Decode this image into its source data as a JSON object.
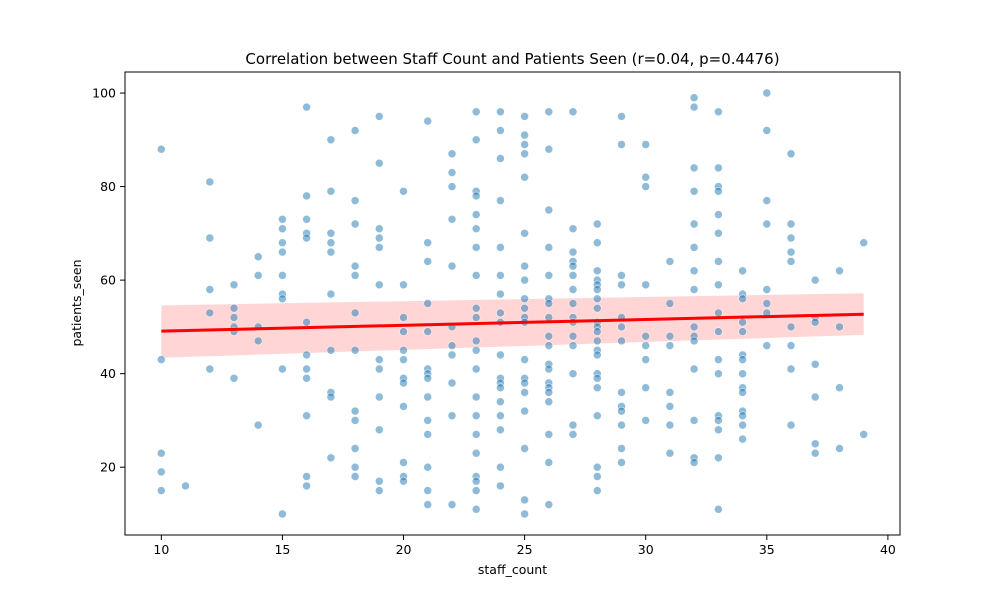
{
  "chart_data": {
    "type": "scatter",
    "title": "Correlation between Staff Count and Patients Seen (r=0.04, p=0.4476)",
    "xlabel": "staff_count",
    "ylabel": "patients_seen",
    "xlim": [
      8.5,
      40.5
    ],
    "ylim": [
      5.5,
      104.5
    ],
    "xticks": [
      10,
      15,
      20,
      25,
      30,
      35,
      40
    ],
    "yticks": [
      20,
      40,
      60,
      80,
      100
    ],
    "grid": false,
    "colors": {
      "points": "#1f77b4",
      "fit_line": "#ff0000",
      "confidence_band": "#ffb3b3"
    },
    "regression": {
      "x": [
        10,
        39
      ],
      "y": [
        49.1,
        52.7
      ],
      "ci_upper": [
        54.6,
        57.2
      ],
      "ci_lower": [
        43.4,
        48.3
      ]
    },
    "points": [
      [
        10,
        88
      ],
      [
        10,
        43
      ],
      [
        10,
        23
      ],
      [
        10,
        19
      ],
      [
        10,
        15
      ],
      [
        11,
        16
      ],
      [
        12,
        81
      ],
      [
        12,
        69
      ],
      [
        12,
        58
      ],
      [
        12,
        53
      ],
      [
        12,
        41
      ],
      [
        13,
        59
      ],
      [
        13,
        54
      ],
      [
        13,
        52
      ],
      [
        13,
        50
      ],
      [
        13,
        49
      ],
      [
        13,
        39
      ],
      [
        14,
        65
      ],
      [
        14,
        61
      ],
      [
        14,
        50
      ],
      [
        14,
        47
      ],
      [
        14,
        29
      ],
      [
        15,
        73
      ],
      [
        15,
        71
      ],
      [
        15,
        68
      ],
      [
        15,
        66
      ],
      [
        15,
        61
      ],
      [
        15,
        57
      ],
      [
        15,
        56
      ],
      [
        15,
        41
      ],
      [
        15,
        10
      ],
      [
        16,
        97
      ],
      [
        16,
        78
      ],
      [
        16,
        73
      ],
      [
        16,
        70
      ],
      [
        16,
        69
      ],
      [
        16,
        51
      ],
      [
        16,
        44
      ],
      [
        16,
        41
      ],
      [
        16,
        39
      ],
      [
        16,
        31
      ],
      [
        16,
        18
      ],
      [
        16,
        16
      ],
      [
        17,
        90
      ],
      [
        17,
        79
      ],
      [
        17,
        70
      ],
      [
        17,
        68
      ],
      [
        17,
        66
      ],
      [
        17,
        57
      ],
      [
        17,
        45
      ],
      [
        17,
        36
      ],
      [
        17,
        35
      ],
      [
        17,
        22
      ],
      [
        18,
        92
      ],
      [
        18,
        77
      ],
      [
        18,
        72
      ],
      [
        18,
        63
      ],
      [
        18,
        61
      ],
      [
        18,
        53
      ],
      [
        18,
        45
      ],
      [
        18,
        32
      ],
      [
        18,
        30
      ],
      [
        18,
        24
      ],
      [
        18,
        20
      ],
      [
        18,
        18
      ],
      [
        19,
        95
      ],
      [
        19,
        85
      ],
      [
        19,
        71
      ],
      [
        19,
        69
      ],
      [
        19,
        67
      ],
      [
        19,
        59
      ],
      [
        19,
        43
      ],
      [
        19,
        41
      ],
      [
        19,
        35
      ],
      [
        19,
        28
      ],
      [
        19,
        17
      ],
      [
        19,
        15
      ],
      [
        20,
        79
      ],
      [
        20,
        59
      ],
      [
        20,
        52
      ],
      [
        20,
        49
      ],
      [
        20,
        45
      ],
      [
        20,
        43
      ],
      [
        20,
        39
      ],
      [
        20,
        38
      ],
      [
        20,
        33
      ],
      [
        20,
        21
      ],
      [
        20,
        18
      ],
      [
        20,
        17
      ],
      [
        21,
        94
      ],
      [
        21,
        68
      ],
      [
        21,
        64
      ],
      [
        21,
        55
      ],
      [
        21,
        49
      ],
      [
        21,
        41
      ],
      [
        21,
        40
      ],
      [
        21,
        39
      ],
      [
        21,
        35
      ],
      [
        21,
        30
      ],
      [
        21,
        27
      ],
      [
        21,
        20
      ],
      [
        21,
        15
      ],
      [
        21,
        12
      ],
      [
        22,
        87
      ],
      [
        22,
        83
      ],
      [
        22,
        80
      ],
      [
        22,
        73
      ],
      [
        22,
        63
      ],
      [
        22,
        50
      ],
      [
        22,
        46
      ],
      [
        22,
        44
      ],
      [
        22,
        38
      ],
      [
        22,
        31
      ],
      [
        22,
        12
      ],
      [
        23,
        96
      ],
      [
        23,
        90
      ],
      [
        23,
        79
      ],
      [
        23,
        78
      ],
      [
        23,
        74
      ],
      [
        23,
        71
      ],
      [
        23,
        67
      ],
      [
        23,
        61
      ],
      [
        23,
        54
      ],
      [
        23,
        52
      ],
      [
        23,
        47
      ],
      [
        23,
        45
      ],
      [
        23,
        41
      ],
      [
        23,
        35
      ],
      [
        23,
        31
      ],
      [
        23,
        27
      ],
      [
        23,
        23
      ],
      [
        23,
        18
      ],
      [
        23,
        17
      ],
      [
        23,
        15
      ],
      [
        23,
        11
      ],
      [
        24,
        96
      ],
      [
        24,
        92
      ],
      [
        24,
        86
      ],
      [
        24,
        77
      ],
      [
        24,
        67
      ],
      [
        24,
        61
      ],
      [
        24,
        57
      ],
      [
        24,
        53
      ],
      [
        24,
        51
      ],
      [
        24,
        44
      ],
      [
        24,
        39
      ],
      [
        24,
        38
      ],
      [
        24,
        37
      ],
      [
        24,
        34
      ],
      [
        24,
        31
      ],
      [
        24,
        28
      ],
      [
        24,
        20
      ],
      [
        24,
        16
      ],
      [
        25,
        95
      ],
      [
        25,
        91
      ],
      [
        25,
        89
      ],
      [
        25,
        87
      ],
      [
        25,
        82
      ],
      [
        25,
        70
      ],
      [
        25,
        63
      ],
      [
        25,
        60
      ],
      [
        25,
        56
      ],
      [
        25,
        54
      ],
      [
        25,
        52
      ],
      [
        25,
        51
      ],
      [
        25,
        43
      ],
      [
        25,
        39
      ],
      [
        25,
        38
      ],
      [
        25,
        36
      ],
      [
        25,
        32
      ],
      [
        25,
        24
      ],
      [
        25,
        13
      ],
      [
        25,
        10
      ],
      [
        26,
        96
      ],
      [
        26,
        88
      ],
      [
        26,
        75
      ],
      [
        26,
        67
      ],
      [
        26,
        61
      ],
      [
        26,
        56
      ],
      [
        26,
        55
      ],
      [
        26,
        52
      ],
      [
        26,
        48
      ],
      [
        26,
        46
      ],
      [
        26,
        42
      ],
      [
        26,
        41
      ],
      [
        26,
        38
      ],
      [
        26,
        37
      ],
      [
        26,
        36
      ],
      [
        26,
        34
      ],
      [
        26,
        27
      ],
      [
        26,
        21
      ],
      [
        26,
        12
      ],
      [
        27,
        96
      ],
      [
        27,
        71
      ],
      [
        27,
        66
      ],
      [
        27,
        64
      ],
      [
        27,
        63
      ],
      [
        27,
        61
      ],
      [
        27,
        58
      ],
      [
        27,
        55
      ],
      [
        27,
        52
      ],
      [
        27,
        51
      ],
      [
        27,
        48
      ],
      [
        27,
        46
      ],
      [
        27,
        40
      ],
      [
        27,
        29
      ],
      [
        27,
        27
      ],
      [
        28,
        72
      ],
      [
        28,
        68
      ],
      [
        28,
        62
      ],
      [
        28,
        60
      ],
      [
        28,
        59
      ],
      [
        28,
        58
      ],
      [
        28,
        56
      ],
      [
        28,
        54
      ],
      [
        28,
        51
      ],
      [
        28,
        50
      ],
      [
        28,
        49
      ],
      [
        28,
        47
      ],
      [
        28,
        45
      ],
      [
        28,
        44
      ],
      [
        28,
        40
      ],
      [
        28,
        39
      ],
      [
        28,
        37
      ],
      [
        28,
        31
      ],
      [
        28,
        20
      ],
      [
        28,
        18
      ],
      [
        28,
        15
      ],
      [
        29,
        95
      ],
      [
        29,
        89
      ],
      [
        29,
        61
      ],
      [
        29,
        59
      ],
      [
        29,
        52
      ],
      [
        29,
        50
      ],
      [
        29,
        47
      ],
      [
        29,
        36
      ],
      [
        29,
        33
      ],
      [
        29,
        32
      ],
      [
        29,
        29
      ],
      [
        29,
        24
      ],
      [
        29,
        21
      ],
      [
        30,
        89
      ],
      [
        30,
        82
      ],
      [
        30,
        80
      ],
      [
        30,
        59
      ],
      [
        30,
        48
      ],
      [
        30,
        46
      ],
      [
        30,
        43
      ],
      [
        30,
        37
      ],
      [
        30,
        30
      ],
      [
        31,
        64
      ],
      [
        31,
        55
      ],
      [
        31,
        48
      ],
      [
        31,
        46
      ],
      [
        31,
        36
      ],
      [
        31,
        33
      ],
      [
        31,
        29
      ],
      [
        31,
        23
      ],
      [
        32,
        99
      ],
      [
        32,
        97
      ],
      [
        32,
        84
      ],
      [
        32,
        79
      ],
      [
        32,
        72
      ],
      [
        32,
        67
      ],
      [
        32,
        62
      ],
      [
        32,
        58
      ],
      [
        32,
        50
      ],
      [
        32,
        48
      ],
      [
        32,
        47
      ],
      [
        32,
        41
      ],
      [
        32,
        30
      ],
      [
        32,
        22
      ],
      [
        32,
        21
      ],
      [
        33,
        96
      ],
      [
        33,
        84
      ],
      [
        33,
        80
      ],
      [
        33,
        79
      ],
      [
        33,
        74
      ],
      [
        33,
        70
      ],
      [
        33,
        64
      ],
      [
        33,
        59
      ],
      [
        33,
        53
      ],
      [
        33,
        49
      ],
      [
        33,
        43
      ],
      [
        33,
        40
      ],
      [
        33,
        31
      ],
      [
        33,
        30
      ],
      [
        33,
        28
      ],
      [
        33,
        22
      ],
      [
        33,
        11
      ],
      [
        34,
        62
      ],
      [
        34,
        57
      ],
      [
        34,
        56
      ],
      [
        34,
        51
      ],
      [
        34,
        49
      ],
      [
        34,
        44
      ],
      [
        34,
        43
      ],
      [
        34,
        40
      ],
      [
        34,
        37
      ],
      [
        34,
        36
      ],
      [
        34,
        32
      ],
      [
        34,
        31
      ],
      [
        34,
        29
      ],
      [
        34,
        26
      ],
      [
        35,
        100
      ],
      [
        35,
        92
      ],
      [
        35,
        77
      ],
      [
        35,
        72
      ],
      [
        35,
        58
      ],
      [
        35,
        55
      ],
      [
        35,
        53
      ],
      [
        35,
        46
      ],
      [
        36,
        87
      ],
      [
        36,
        72
      ],
      [
        36,
        69
      ],
      [
        36,
        66
      ],
      [
        36,
        64
      ],
      [
        36,
        50
      ],
      [
        36,
        46
      ],
      [
        36,
        41
      ],
      [
        36,
        29
      ],
      [
        37,
        60
      ],
      [
        37,
        52
      ],
      [
        37,
        51
      ],
      [
        37,
        42
      ],
      [
        37,
        35
      ],
      [
        37,
        25
      ],
      [
        37,
        23
      ],
      [
        38,
        62
      ],
      [
        38,
        50
      ],
      [
        38,
        37
      ],
      [
        38,
        24
      ],
      [
        39,
        68
      ],
      [
        39,
        27
      ]
    ]
  }
}
